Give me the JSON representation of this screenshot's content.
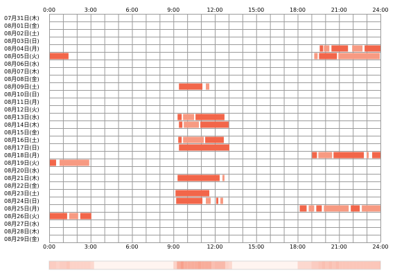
{
  "chart_data": {
    "type": "heatmap",
    "title": "",
    "xlabel": "",
    "ylabel": "",
    "x_range": [
      0,
      24
    ],
    "x_ticks": [
      {
        "value": 0,
        "label": "0:00"
      },
      {
        "value": 3,
        "label": "3:00"
      },
      {
        "value": 6,
        "label": "6:00"
      },
      {
        "value": 9,
        "label": "9:00"
      },
      {
        "value": 12,
        "label": "12:00"
      },
      {
        "value": 15,
        "label": "15:00"
      },
      {
        "value": 18,
        "label": "18:00"
      },
      {
        "value": 21,
        "label": "21:00"
      },
      {
        "value": 24,
        "label": "24:00"
      }
    ],
    "grid": true,
    "grid_minor_step_hours": 1,
    "colors": {
      "bar": "#f2664a",
      "bar_light": "#f79a82",
      "grid": "#9a9a9a",
      "summary_base": "#fff4f0",
      "summary_high": "#f7a08c"
    },
    "rows": [
      {
        "label": "07月31日(木)",
        "segments": []
      },
      {
        "label": "08月01日(金)",
        "segments": []
      },
      {
        "label": "08月02日(土)",
        "segments": []
      },
      {
        "label": "08月03日(日)",
        "segments": []
      },
      {
        "label": "08月04日(月)",
        "segments": [
          [
            19.6,
            19.85
          ],
          [
            19.9,
            20.3
          ],
          [
            20.45,
            21.65
          ],
          [
            21.95,
            22.7
          ],
          [
            22.85,
            24.0
          ]
        ]
      },
      {
        "label": "08月05日(火)",
        "segments": [
          [
            0.05,
            1.4
          ],
          [
            19.2,
            19.45
          ],
          [
            19.55,
            20.85
          ],
          [
            20.95,
            23.95
          ]
        ]
      },
      {
        "label": "08月06日(水)",
        "segments": []
      },
      {
        "label": "08月07日(木)",
        "segments": []
      },
      {
        "label": "08月08日(金)",
        "segments": []
      },
      {
        "label": "08月09日(土)",
        "segments": [
          [
            9.4,
            11.1
          ],
          [
            11.35,
            11.6
          ]
        ]
      },
      {
        "label": "08月10日(日)",
        "segments": []
      },
      {
        "label": "08月11日(月)",
        "segments": []
      },
      {
        "label": "08月12日(火)",
        "segments": []
      },
      {
        "label": "08月13日(水)",
        "segments": [
          [
            9.3,
            9.6
          ],
          [
            9.7,
            10.5
          ],
          [
            10.6,
            12.7
          ]
        ]
      },
      {
        "label": "08月14日(木)",
        "segments": [
          [
            9.4,
            9.65
          ],
          [
            9.75,
            10.85
          ],
          [
            10.95,
            13.0
          ]
        ]
      },
      {
        "label": "08月15日(金)",
        "segments": []
      },
      {
        "label": "08月16日(土)",
        "segments": [
          [
            9.35,
            9.6
          ],
          [
            9.7,
            11.2
          ],
          [
            11.3,
            12.65
          ]
        ]
      },
      {
        "label": "08月17日(日)",
        "segments": [
          [
            9.4,
            13.05
          ]
        ]
      },
      {
        "label": "08月18日(月)",
        "segments": [
          [
            19.05,
            19.4
          ],
          [
            19.5,
            20.5
          ],
          [
            20.6,
            22.8
          ],
          [
            23.0,
            23.15
          ],
          [
            23.4,
            24.0
          ]
        ]
      },
      {
        "label": "08月19日(火)",
        "segments": [
          [
            0.05,
            0.5
          ],
          [
            0.75,
            2.9
          ]
        ]
      },
      {
        "label": "08月20日(水)",
        "segments": []
      },
      {
        "label": "08月21日(木)",
        "segments": [
          [
            9.3,
            12.35
          ],
          [
            12.55,
            12.7
          ]
        ]
      },
      {
        "label": "08月22日(金)",
        "segments": []
      },
      {
        "label": "08月23日(土)",
        "segments": [
          [
            9.15,
            11.6
          ]
        ]
      },
      {
        "label": "08月24日(日)",
        "segments": [
          [
            9.2,
            11.1
          ],
          [
            11.35,
            11.7
          ],
          [
            12.1,
            12.25
          ],
          [
            12.4,
            12.6
          ]
        ]
      },
      {
        "label": "08月25日(月)",
        "segments": [
          [
            18.15,
            18.65
          ],
          [
            18.8,
            19.2
          ],
          [
            19.35,
            19.75
          ],
          [
            19.9,
            21.7
          ],
          [
            21.85,
            22.5
          ],
          [
            22.65,
            24.0
          ]
        ]
      },
      {
        "label": "08月26日(火)",
        "segments": [
          [
            0.05,
            1.3
          ],
          [
            1.45,
            2.1
          ],
          [
            2.25,
            3.05
          ]
        ]
      },
      {
        "label": "08月27日(水)",
        "segments": []
      },
      {
        "label": "08月28日(木)",
        "segments": []
      },
      {
        "label": "08月29日(金)",
        "segments": []
      }
    ]
  }
}
